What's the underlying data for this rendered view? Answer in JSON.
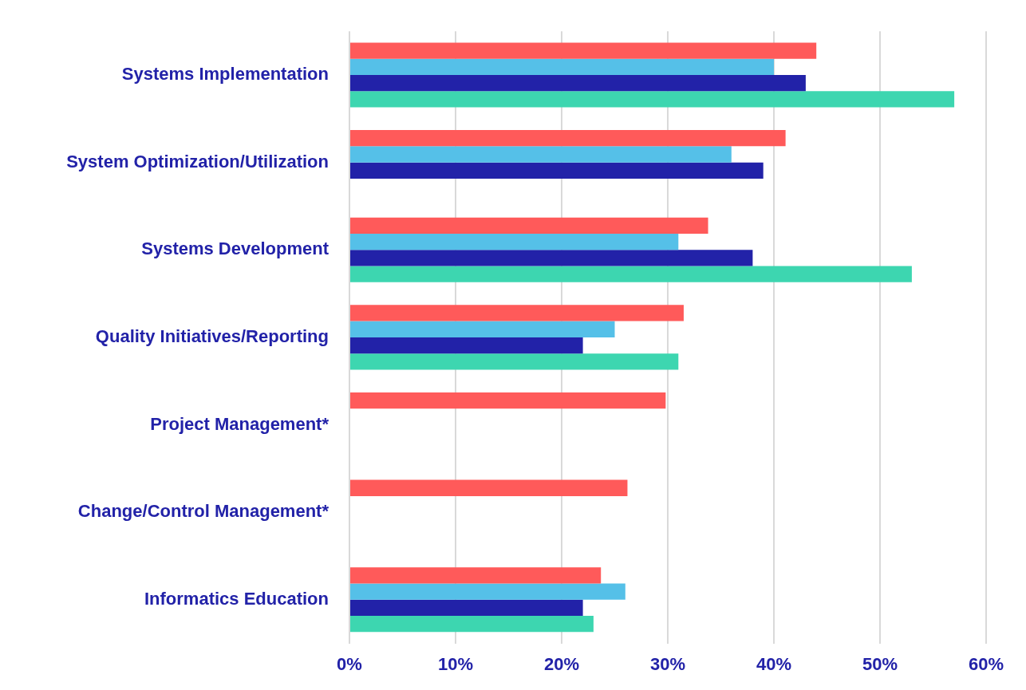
{
  "chart_data": {
    "type": "bar",
    "orientation": "horizontal",
    "categories": [
      "Systems Implementation",
      "System Optimization/Utilization",
      "Systems Development",
      "Quality Initiatives/Reporting",
      "Project Management*",
      "Change/Control Management*",
      "Informatics Education"
    ],
    "series": [
      {
        "color": "#ff5a5a",
        "values": [
          44,
          41.1,
          33.8,
          31.5,
          29.8,
          26.2,
          23.7
        ]
      },
      {
        "color": "#55c0e8",
        "values": [
          40,
          36,
          31,
          25,
          null,
          null,
          26
        ]
      },
      {
        "color": "#2222a8",
        "values": [
          43,
          39,
          38,
          22,
          null,
          null,
          22
        ]
      },
      {
        "color": "#3dd6b0",
        "values": [
          57,
          null,
          53,
          31,
          null,
          null,
          23
        ]
      }
    ],
    "xlim": [
      0,
      60
    ],
    "xticks": [
      {
        "value": 0,
        "label": "0%"
      },
      {
        "value": 10,
        "label": "10%"
      },
      {
        "value": 20,
        "label": "20%"
      },
      {
        "value": 30,
        "label": "30%"
      },
      {
        "value": 40,
        "label": "40%"
      },
      {
        "value": 50,
        "label": "50%"
      },
      {
        "value": 60,
        "label": "60%"
      }
    ],
    "grid": "x",
    "legend": false
  }
}
